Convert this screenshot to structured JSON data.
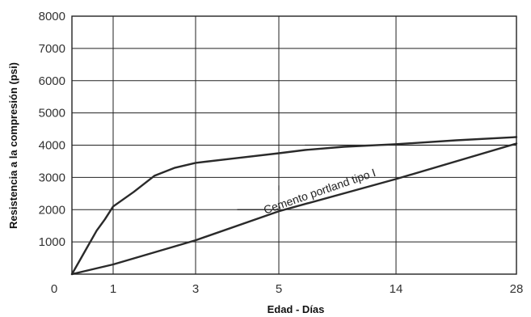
{
  "chart_data": {
    "type": "line",
    "xlabel": "Edad - Días",
    "ylabel": "Resistencia a la compresión (psi)",
    "x_tick_labels": [
      "0",
      "1",
      "3",
      "5",
      "14",
      "28"
    ],
    "y_ticks": [
      0,
      1000,
      2000,
      3000,
      4000,
      5000,
      6000,
      7000,
      8000
    ],
    "y_tick_labels": [
      "1000",
      "2000",
      "3000",
      "4000",
      "5000",
      "6000",
      "7000",
      "8000"
    ],
    "ylim": [
      0,
      8000
    ],
    "x_scale": "non-uniform (ticks at 0, 1, 3, 5, 14, 28 days)",
    "grid": true,
    "annotation": "Cemento portland tipo I",
    "series": [
      {
        "x": [
          0,
          0.2,
          0.4,
          0.6,
          0.8,
          1,
          1.5,
          2,
          2.5,
          3,
          4,
          5,
          7,
          10,
          14,
          21,
          28
        ],
        "values": [
          0,
          450,
          900,
          1350,
          1700,
          2100,
          2550,
          3050,
          3300,
          3450,
          3600,
          3750,
          3850,
          3950,
          4030,
          4150,
          4250
        ]
      },
      {
        "x": [
          0,
          1,
          3,
          5,
          14,
          28
        ],
        "values": [
          0,
          300,
          1050,
          1950,
          2950,
          4050
        ]
      }
    ],
    "horizontal_segments": [
      {
        "x": [
          7,
          28
        ],
        "y": 4000
      },
      {
        "x": [
          4,
          5
        ],
        "y": 2000
      }
    ],
    "vertical_segments": [
      {
        "x": 5,
        "y": [
          2600,
          2750
        ]
      }
    ]
  }
}
